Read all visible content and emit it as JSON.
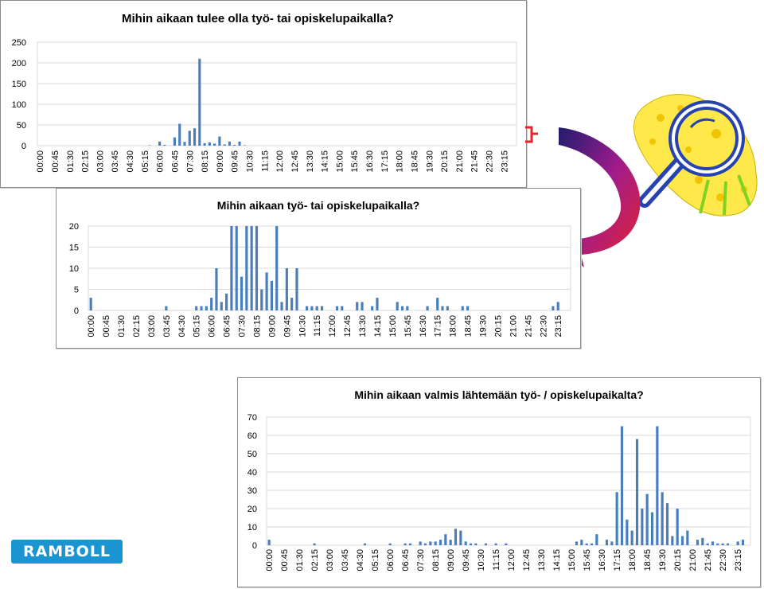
{
  "brand": {
    "logo_text": "RAMBOLL",
    "logo_color": "#1b94d2"
  },
  "colors": {
    "bar": "#4a7ebb",
    "grid": "#d9d9d9",
    "arrow_dark": "#1c1c6e",
    "arrow_mid": "#a01c8c",
    "arrow_light": "#e8232a",
    "blob": "#ffe84a",
    "lens": "#2743b0"
  },
  "icons": [
    "magnifying-glass-icon",
    "curved-arrow-icon"
  ],
  "time_labels": [
    "00:00",
    "00:45",
    "01:30",
    "02:15",
    "03:00",
    "03:45",
    "04:30",
    "05:15",
    "06:00",
    "06:45",
    "07:30",
    "08:15",
    "09:00",
    "09:45",
    "10:30",
    "11:15",
    "12:00",
    "12:45",
    "13:30",
    "14:15",
    "15:00",
    "15:45",
    "16:30",
    "17:15",
    "18:00",
    "18:45",
    "19:30",
    "20:15",
    "21:00",
    "21:45",
    "22:30",
    "23:15"
  ],
  "chart_data": [
    {
      "type": "bar",
      "title": "Mihin aikaan tulee olla  työ- tai opiskelupaikalla?",
      "interval_minutes": 15,
      "ylim": [
        0,
        250
      ],
      "yticks": [
        0,
        50,
        100,
        150,
        200,
        250
      ],
      "grid": true,
      "values": [
        0,
        0,
        0,
        0,
        0,
        0,
        0,
        0,
        0,
        0,
        0,
        0,
        0,
        0,
        0,
        0,
        0,
        0,
        0,
        0,
        0,
        0,
        1,
        0,
        10,
        2,
        0,
        20,
        53,
        9,
        36,
        42,
        210,
        6,
        8,
        5,
        22,
        3,
        10,
        2,
        10,
        1,
        0,
        0,
        0,
        0,
        0,
        0,
        0,
        0,
        0,
        0,
        0,
        0,
        0,
        0,
        0,
        0,
        0,
        0,
        0,
        0,
        0,
        0,
        0,
        0,
        0,
        0,
        0,
        0,
        0,
        0,
        0,
        0,
        0,
        0,
        0,
        0,
        0,
        0,
        0,
        0,
        0,
        0,
        0,
        0,
        0,
        0,
        0,
        0,
        0,
        0,
        0,
        0,
        0,
        0
      ]
    },
    {
      "type": "bar",
      "title": "Mihin aikaan työ- tai opiskelupaikalla?",
      "interval_minutes": 15,
      "ylim": [
        0,
        20
      ],
      "yticks": [
        0,
        5,
        10,
        15,
        20
      ],
      "grid": true,
      "values": [
        3,
        0,
        0,
        0,
        0,
        0,
        0,
        0,
        0,
        0,
        0,
        0,
        0,
        0,
        0,
        1,
        0,
        0,
        0,
        0,
        0,
        1,
        1,
        1,
        3,
        10,
        2,
        4,
        20,
        20,
        8,
        20,
        20,
        20,
        5,
        9,
        7,
        20,
        2,
        10,
        3,
        10,
        0,
        1,
        1,
        1,
        1,
        0,
        0,
        1,
        1,
        0,
        0,
        2,
        2,
        0,
        1,
        3,
        0,
        0,
        0,
        2,
        1,
        1,
        0,
        0,
        0,
        1,
        0,
        3,
        1,
        1,
        0,
        0,
        1,
        1,
        0,
        0,
        0,
        0,
        0,
        0,
        0,
        0,
        0,
        0,
        0,
        0,
        0,
        0,
        0,
        0,
        1,
        2,
        0,
        0
      ]
    },
    {
      "type": "bar",
      "title": "Mihin aikaan valmis lähtemään työ- / opiskelupaikalta?",
      "interval_minutes": 15,
      "ylim": [
        0,
        70
      ],
      "yticks": [
        0,
        10,
        20,
        30,
        40,
        50,
        60,
        70
      ],
      "grid": true,
      "values": [
        3,
        0,
        0,
        0,
        0,
        0,
        0,
        0,
        0,
        1,
        0,
        0,
        0,
        0,
        0,
        0,
        0,
        0,
        0,
        1,
        0,
        0,
        0,
        0,
        1,
        0,
        0,
        1,
        1,
        0,
        2,
        1,
        2,
        2,
        3,
        6,
        3,
        9,
        8,
        2,
        1,
        1,
        0,
        1,
        0,
        1,
        0,
        1,
        0,
        0,
        0,
        0,
        0,
        0,
        0,
        0,
        0,
        0,
        0,
        0,
        0,
        2,
        3,
        1,
        1,
        6,
        0,
        3,
        2,
        29,
        65,
        14,
        8,
        58,
        20,
        28,
        18,
        65,
        29,
        23,
        5,
        20,
        5,
        8,
        0,
        3,
        4,
        1,
        2,
        1,
        1,
        1,
        0,
        2,
        3,
        0
      ]
    }
  ]
}
